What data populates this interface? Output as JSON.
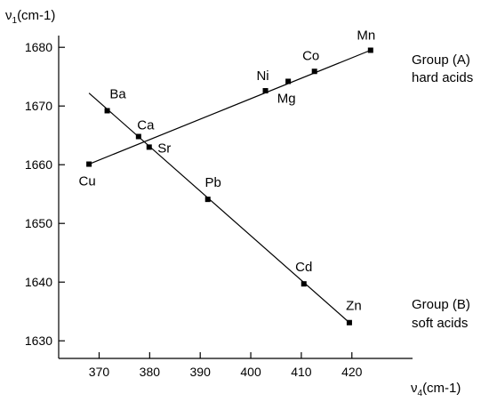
{
  "chart_data": {
    "type": "scatter",
    "title": "",
    "ylabel": "ν1(cm-1)",
    "ylabel_parts": {
      "symbol": "ν",
      "sub": "1",
      "unit": "(cm-1)"
    },
    "xlabel": "ν4(cm-1)",
    "xlabel_parts": {
      "symbol": "ν",
      "sub": "4",
      "unit": "(cm-1)"
    },
    "xlim": [
      362,
      432
    ],
    "ylim": [
      1627,
      1682
    ],
    "x_ticks": [
      370,
      380,
      390,
      400,
      410,
      420
    ],
    "y_ticks": [
      1630,
      1640,
      1650,
      1660,
      1670,
      1680
    ],
    "grid": false,
    "series": [
      {
        "name": "Group (A) hard acids",
        "label_lines": [
          "Group (A)",
          "hard acids"
        ],
        "points": [
          {
            "label": "Cu",
            "x": 368.0,
            "y": 1660.1
          },
          {
            "label": "Ca",
            "x": 377.8,
            "y": 1664.8
          },
          {
            "label": "Ni",
            "x": 402.9,
            "y": 1672.6
          },
          {
            "label": "Mg",
            "x": 407.4,
            "y": 1674.2
          },
          {
            "label": "Co",
            "x": 412.6,
            "y": 1675.9
          },
          {
            "label": "Mn",
            "x": 423.7,
            "y": 1679.5
          }
        ],
        "fit_line": {
          "x": [
            368.0,
            423.7
          ],
          "y": [
            1660.1,
            1679.5
          ]
        }
      },
      {
        "name": "Group (B) soft acids",
        "label_lines": [
          "Group (B)",
          "soft acids"
        ],
        "points": [
          {
            "label": "Ba",
            "x": 371.6,
            "y": 1669.2
          },
          {
            "label": "Sr",
            "x": 379.9,
            "y": 1663.0
          },
          {
            "label": "Pb",
            "x": 391.5,
            "y": 1654.1
          },
          {
            "label": "Cd",
            "x": 410.5,
            "y": 1639.7
          },
          {
            "label": "Zn",
            "x": 419.5,
            "y": 1633.1
          }
        ],
        "fit_line": {
          "x": [
            368.0,
            419.5
          ],
          "y": [
            1672.2,
            1633.1
          ]
        }
      }
    ]
  }
}
